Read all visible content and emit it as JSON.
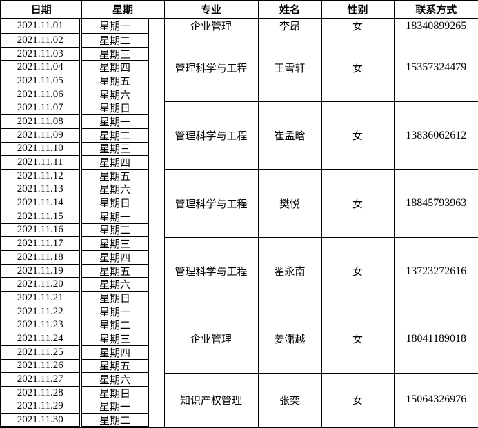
{
  "page": {
    "background_color": "#ffffff",
    "grid_color": "#000000",
    "text_color": "#000000"
  },
  "table": {
    "headers": [
      "日期",
      "星期",
      "专业",
      "姓名",
      "性别",
      "联系方式"
    ],
    "groups": [
      {
        "major": "企业管理",
        "name": "李昂",
        "gender": "女",
        "phone": "18340899265",
        "rows": [
          {
            "date": "2021.11.01",
            "week": "星期一"
          }
        ]
      },
      {
        "major": "管理科学与工程",
        "name": "王雪轩",
        "gender": "女",
        "phone": "15357324479",
        "rows": [
          {
            "date": "2021.11.02",
            "week": "星期二"
          },
          {
            "date": "2021.11.03",
            "week": "星期三"
          },
          {
            "date": "2021.11.04",
            "week": "星期四"
          },
          {
            "date": "2021.11.05",
            "week": "星期五"
          },
          {
            "date": "2021.11.06",
            "week": "星期六"
          }
        ]
      },
      {
        "major": "管理科学与工程",
        "name": "崔孟晗",
        "gender": "女",
        "phone": "13836062612",
        "rows": [
          {
            "date": "2021.11.07",
            "week": "星期日"
          },
          {
            "date": "2021.11.08",
            "week": "星期一"
          },
          {
            "date": "2021.11.09",
            "week": "星期二"
          },
          {
            "date": "2021.11.10",
            "week": "星期三"
          },
          {
            "date": "2021.11.11",
            "week": "星期四"
          }
        ]
      },
      {
        "major": "管理科学与工程",
        "name": "樊悦",
        "gender": "女",
        "phone": "18845793963",
        "rows": [
          {
            "date": "2021.11.12",
            "week": "星期五"
          },
          {
            "date": "2021.11.13",
            "week": "星期六"
          },
          {
            "date": "2021.11.14",
            "week": "星期日"
          },
          {
            "date": "2021.11.15",
            "week": "星期一"
          },
          {
            "date": "2021.11.16",
            "week": "星期二"
          }
        ]
      },
      {
        "major": "管理科学与工程",
        "name": "翟永南",
        "gender": "女",
        "phone": "13723272616",
        "rows": [
          {
            "date": "2021.11.17",
            "week": "星期三"
          },
          {
            "date": "2021.11.18",
            "week": "星期四"
          },
          {
            "date": "2021.11.19",
            "week": "星期五"
          },
          {
            "date": "2021.11.20",
            "week": "星期六"
          },
          {
            "date": "2021.11.21",
            "week": "星期日"
          }
        ]
      },
      {
        "major": "企业管理",
        "name": "姜潇越",
        "gender": "女",
        "phone": "18041189018",
        "rows": [
          {
            "date": "2021.11.22",
            "week": "星期一"
          },
          {
            "date": "2021.11.23",
            "week": "星期二"
          },
          {
            "date": "2021.11.24",
            "week": "星期三"
          },
          {
            "date": "2021.11.25",
            "week": "星期四"
          },
          {
            "date": "2021.11.26",
            "week": "星期五"
          }
        ]
      },
      {
        "major": "知识产权管理",
        "name": "张奕",
        "gender": "女",
        "phone": "15064326976",
        "rows": [
          {
            "date": "2021.11.27",
            "week": "星期六"
          },
          {
            "date": "2021.11.28",
            "week": "星期日"
          },
          {
            "date": "2021.11.29",
            "week": "星期一"
          },
          {
            "date": "2021.11.30",
            "week": "星期二"
          }
        ]
      }
    ]
  }
}
